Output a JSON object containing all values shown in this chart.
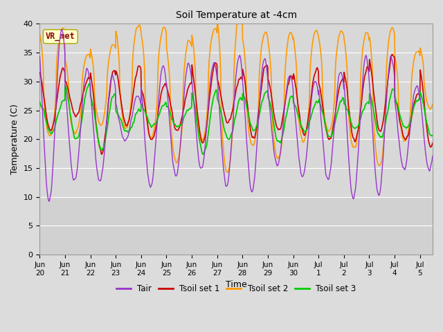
{
  "title": "Soil Temperature at -4cm",
  "xlabel": "Time",
  "ylabel": "Temperature (C)",
  "ylim": [
    0,
    40
  ],
  "yticks": [
    0,
    5,
    10,
    15,
    20,
    25,
    30,
    35,
    40
  ],
  "plot_bg": "#dcdcdc",
  "fig_bg": "#dcdcdc",
  "colors": {
    "Tair": "#9933cc",
    "Tsoil1": "#cc0000",
    "Tsoil2": "#ff9900",
    "Tsoil3": "#00cc00"
  },
  "legend_labels": [
    "Tair",
    "Tsoil set 1",
    "Tsoil set 2",
    "Tsoil set 3"
  ],
  "tick_labels": [
    "Jun 20",
    "Jun 21",
    "Jun 22",
    "Jun 23",
    "Jun 24",
    "Jun 25",
    "Jun 26",
    "Jun 27",
    "Jun 28",
    "Jun 29",
    "Jun 30",
    "Jul 1",
    "Jul 2",
    "Jul 3",
    "Jul 4",
    "Jul 5"
  ],
  "annotation_text": "VR_met",
  "annotation_bg": "#ffffcc",
  "annotation_border": "#aaa800"
}
